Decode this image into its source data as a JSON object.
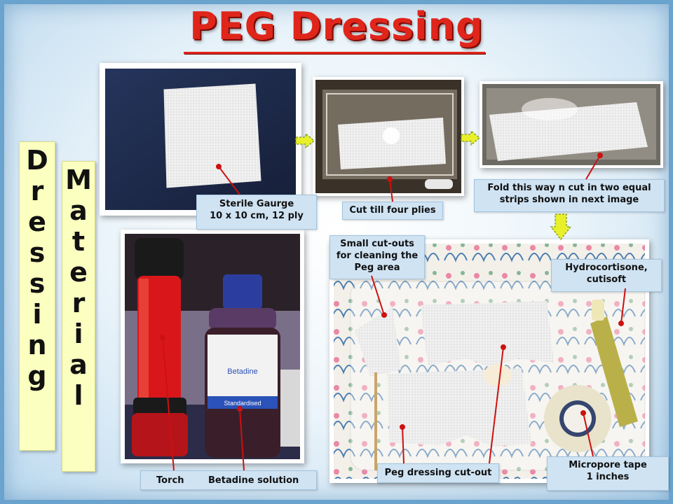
{
  "title": "PEG Dressing",
  "side_words": {
    "first": [
      "D",
      "r",
      "e",
      "s",
      "s",
      "i",
      "n",
      "g"
    ],
    "second": [
      "M",
      "a",
      "t",
      "e",
      "r",
      "i",
      "a",
      "l"
    ]
  },
  "labels": {
    "gauze": [
      "Sterile Gaurge",
      "10 x 10 cm, 12 ply"
    ],
    "cut": "Cut till four plies",
    "fold": [
      "Fold this way n cut in two equal",
      "strips shown in next image"
    ],
    "small": [
      "Small cut-outs",
      "for cleaning the",
      "Peg area"
    ],
    "hydro": [
      "Hydrocortisone,",
      "cutisoft"
    ],
    "torch_betadine": [
      "Torch",
      "Betadine solution"
    ],
    "peg": "Peg dressing cut-out",
    "micropore": [
      "Micropore tape",
      "1 inches"
    ]
  },
  "photo_text": {
    "bottle_brand": "Betadine",
    "bottle_band": "Standardised"
  },
  "colors": {
    "title": "#e0251b",
    "label_bg": "#cfe3f3",
    "side_box": "#fbffc0",
    "arrow": "#e8f02a",
    "leader": "#cc1111"
  }
}
